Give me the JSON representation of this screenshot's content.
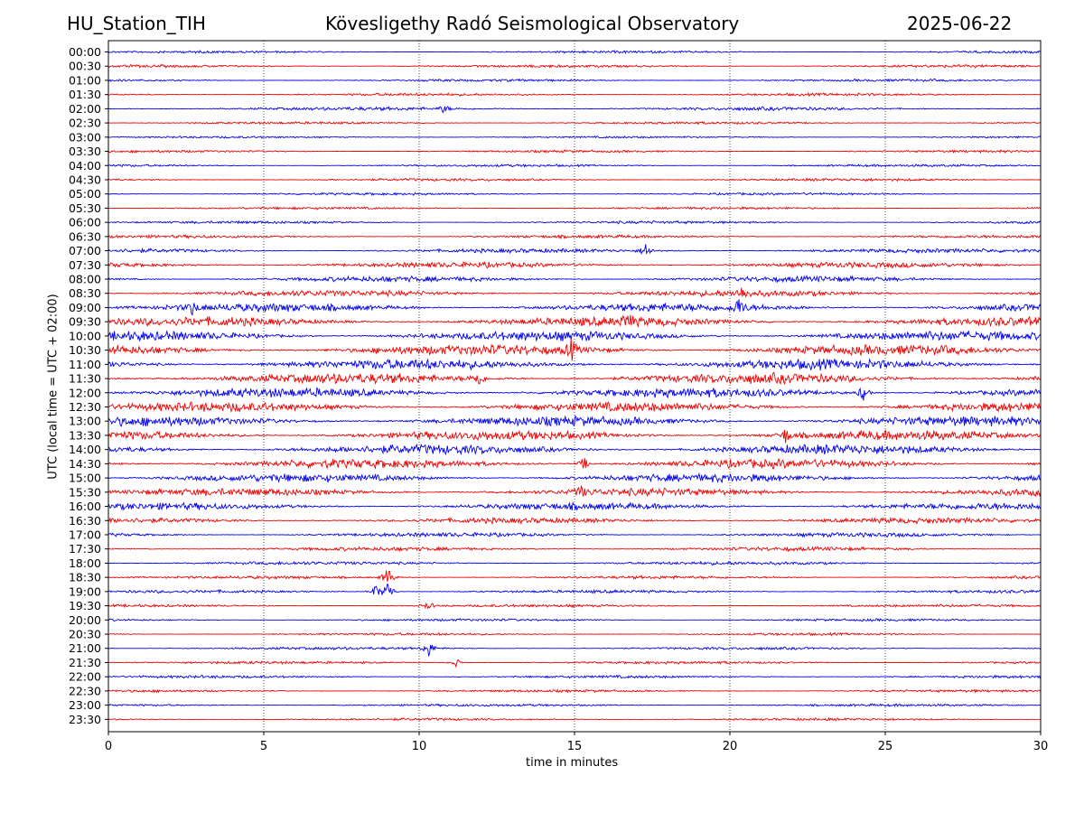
{
  "header": {
    "station": "HU_Station_TIH",
    "title": "Kövesligethy Radó Seismological Observatory",
    "date": "2025-06-22"
  },
  "chart_data": {
    "type": "line",
    "title": "Kövesligethy Radó Seismological Observatory",
    "xlabel": "time in minutes",
    "ylabel": "UTC (local time = UTC + 02:00)",
    "xlim": [
      0,
      30
    ],
    "x_ticks": [
      0,
      5,
      10,
      15,
      20,
      25,
      30
    ],
    "grid": "vertical dotted lines at 5, 10, 15, 20, 25",
    "series_colors": [
      "#0000ee",
      "#ee0000"
    ],
    "rows": [
      "00:00",
      "00:30",
      "01:00",
      "01:30",
      "02:00",
      "02:30",
      "03:00",
      "03:30",
      "04:00",
      "04:30",
      "05:00",
      "05:30",
      "06:00",
      "06:30",
      "07:00",
      "07:30",
      "08:00",
      "08:30",
      "09:00",
      "09:30",
      "10:00",
      "10:30",
      "11:00",
      "11:30",
      "12:00",
      "12:30",
      "13:00",
      "13:30",
      "14:00",
      "14:30",
      "15:00",
      "15:30",
      "16:00",
      "16:30",
      "17:00",
      "17:30",
      "18:00",
      "18:30",
      "19:00",
      "19:30",
      "20:00",
      "20:30",
      "21:00",
      "21:30",
      "22:00",
      "22:30",
      "23:00",
      "23:30"
    ],
    "noise_level": [
      0.18,
      0.2,
      0.18,
      0.2,
      0.25,
      0.18,
      0.15,
      0.18,
      0.18,
      0.2,
      0.18,
      0.18,
      0.2,
      0.22,
      0.3,
      0.4,
      0.4,
      0.45,
      0.6,
      0.65,
      0.7,
      0.75,
      0.75,
      0.75,
      0.7,
      0.7,
      0.7,
      0.7,
      0.7,
      0.65,
      0.6,
      0.55,
      0.5,
      0.4,
      0.3,
      0.28,
      0.25,
      0.22,
      0.22,
      0.2,
      0.18,
      0.18,
      0.2,
      0.2,
      0.2,
      0.18,
      0.18,
      0.18
    ],
    "events": [
      {
        "row": "02:00",
        "minute": 10.8,
        "amplitude": 0.7
      },
      {
        "row": "07:00",
        "minute": 17.3,
        "amplitude": 1.4
      },
      {
        "row": "08:30",
        "minute": 20.4,
        "amplitude": 1.0
      },
      {
        "row": "09:00",
        "minute": 2.7,
        "amplitude": 1.0
      },
      {
        "row": "09:00",
        "minute": 20.3,
        "amplitude": 1.5
      },
      {
        "row": "09:30",
        "minute": 16.7,
        "amplitude": 1.3
      },
      {
        "row": "10:30",
        "minute": 14.9,
        "amplitude": 1.8
      },
      {
        "row": "11:30",
        "minute": 11.9,
        "amplitude": 1.4
      },
      {
        "row": "12:00",
        "minute": 24.3,
        "amplitude": 1.6
      },
      {
        "row": "13:30",
        "minute": 21.8,
        "amplitude": 1.3
      },
      {
        "row": "14:30",
        "minute": 15.3,
        "amplitude": 1.2
      },
      {
        "row": "15:30",
        "minute": 15.2,
        "amplitude": 1.0
      },
      {
        "row": "18:30",
        "minute": 9.0,
        "amplitude": 2.0
      },
      {
        "row": "19:00",
        "minute": 8.6,
        "amplitude": 1.2
      },
      {
        "row": "19:00",
        "minute": 9.0,
        "amplitude": 2.2
      },
      {
        "row": "19:30",
        "minute": 10.3,
        "amplitude": 0.7
      },
      {
        "row": "21:00",
        "minute": 10.3,
        "amplitude": 1.5
      },
      {
        "row": "21:30",
        "minute": 11.2,
        "amplitude": 0.8
      }
    ]
  }
}
